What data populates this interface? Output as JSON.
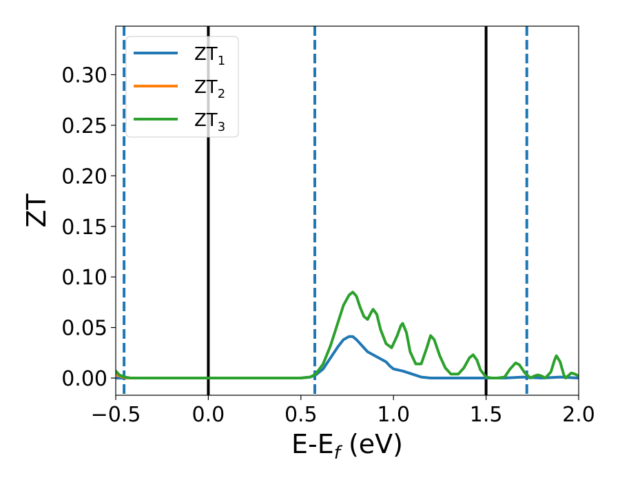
{
  "chart_data": {
    "type": "line",
    "xlabel": "E-E",
    "xlabel_sub": "f",
    "xlabel_unit": " (eV)",
    "ylabel": "ZT",
    "xlim": [
      -0.5,
      2.0
    ],
    "ylim": [
      -0.017,
      0.348
    ],
    "xticks": [
      -0.5,
      0.0,
      0.5,
      1.0,
      1.5,
      2.0
    ],
    "xtick_labels": [
      "−0.5",
      "0.0",
      "0.5",
      "1.0",
      "1.5",
      "2.0"
    ],
    "yticks": [
      0.0,
      0.05,
      0.1,
      0.15,
      0.2,
      0.25,
      0.3
    ],
    "ytick_labels": [
      "0.00",
      "0.05",
      "0.10",
      "0.15",
      "0.20",
      "0.25",
      "0.30"
    ],
    "grid": false,
    "legend_position": "top-left",
    "vlines_solid": [
      0.0,
      1.5
    ],
    "vlines_dashed": [
      -0.455,
      0.575,
      1.72
    ],
    "series": [
      {
        "name": "ZT",
        "sub": "1",
        "color": "#1f77b4",
        "points": [
          [
            -0.5,
            0.0
          ],
          [
            -0.4,
            0.0
          ],
          [
            -0.2,
            0.0
          ],
          [
            0.0,
            0.0
          ],
          [
            0.2,
            0.0
          ],
          [
            0.4,
            0.0
          ],
          [
            0.5,
            0.0
          ],
          [
            0.55,
            0.001
          ],
          [
            0.58,
            0.003
          ],
          [
            0.62,
            0.009
          ],
          [
            0.66,
            0.02
          ],
          [
            0.7,
            0.031
          ],
          [
            0.73,
            0.038
          ],
          [
            0.76,
            0.041
          ],
          [
            0.78,
            0.041
          ],
          [
            0.8,
            0.038
          ],
          [
            0.83,
            0.032
          ],
          [
            0.86,
            0.026
          ],
          [
            0.9,
            0.022
          ],
          [
            0.93,
            0.019
          ],
          [
            0.96,
            0.016
          ],
          [
            0.98,
            0.012
          ],
          [
            1.0,
            0.009
          ],
          [
            1.05,
            0.007
          ],
          [
            1.1,
            0.004
          ],
          [
            1.15,
            0.001
          ],
          [
            1.2,
            0.0
          ],
          [
            1.3,
            0.0
          ],
          [
            1.4,
            0.0
          ],
          [
            1.5,
            0.0
          ],
          [
            1.6,
            0.0
          ],
          [
            1.7,
            0.001
          ],
          [
            1.8,
            0.0
          ],
          [
            1.9,
            0.001
          ],
          [
            2.0,
            0.0
          ]
        ]
      },
      {
        "name": "ZT",
        "sub": "2",
        "color": "#ff7f0e",
        "points": [
          [
            -0.5,
            0.004
          ],
          [
            -0.48,
            0.002
          ],
          [
            -0.46,
            0.001
          ],
          [
            -0.44,
            0.0
          ],
          [
            -0.4,
            0.0
          ]
        ]
      },
      {
        "name": "ZT",
        "sub": "3",
        "color": "#2ca02c",
        "points": [
          [
            -0.5,
            0.007
          ],
          [
            -0.48,
            0.003
          ],
          [
            -0.45,
            0.001
          ],
          [
            -0.42,
            0.0
          ],
          [
            -0.2,
            0.0
          ],
          [
            0.0,
            0.0
          ],
          [
            0.2,
            0.0
          ],
          [
            0.4,
            0.0
          ],
          [
            0.5,
            0.0
          ],
          [
            0.55,
            0.001
          ],
          [
            0.58,
            0.004
          ],
          [
            0.62,
            0.014
          ],
          [
            0.66,
            0.032
          ],
          [
            0.7,
            0.055
          ],
          [
            0.73,
            0.072
          ],
          [
            0.76,
            0.082
          ],
          [
            0.78,
            0.085
          ],
          [
            0.8,
            0.081
          ],
          [
            0.82,
            0.07
          ],
          [
            0.84,
            0.061
          ],
          [
            0.86,
            0.058
          ],
          [
            0.88,
            0.065
          ],
          [
            0.89,
            0.068
          ],
          [
            0.91,
            0.063
          ],
          [
            0.93,
            0.048
          ],
          [
            0.96,
            0.034
          ],
          [
            0.99,
            0.03
          ],
          [
            1.02,
            0.042
          ],
          [
            1.04,
            0.052
          ],
          [
            1.05,
            0.054
          ],
          [
            1.07,
            0.045
          ],
          [
            1.09,
            0.026
          ],
          [
            1.12,
            0.014
          ],
          [
            1.15,
            0.014
          ],
          [
            1.18,
            0.03
          ],
          [
            1.2,
            0.042
          ],
          [
            1.22,
            0.038
          ],
          [
            1.25,
            0.022
          ],
          [
            1.28,
            0.01
          ],
          [
            1.31,
            0.004
          ],
          [
            1.35,
            0.004
          ],
          [
            1.38,
            0.01
          ],
          [
            1.41,
            0.02
          ],
          [
            1.43,
            0.023
          ],
          [
            1.45,
            0.018
          ],
          [
            1.47,
            0.008
          ],
          [
            1.5,
            0.001
          ],
          [
            1.53,
            0.0
          ],
          [
            1.56,
            0.0
          ],
          [
            1.6,
            0.001
          ],
          [
            1.63,
            0.009
          ],
          [
            1.66,
            0.015
          ],
          [
            1.68,
            0.013
          ],
          [
            1.71,
            0.005
          ],
          [
            1.74,
            0.0
          ],
          [
            1.76,
            0.002
          ],
          [
            1.78,
            0.003
          ],
          [
            1.8,
            0.002
          ],
          [
            1.82,
            0.0
          ],
          [
            1.85,
            0.006
          ],
          [
            1.87,
            0.018
          ],
          [
            1.88,
            0.022
          ],
          [
            1.9,
            0.016
          ],
          [
            1.92,
            0.003
          ],
          [
            1.93,
            0.0
          ],
          [
            1.96,
            0.005
          ],
          [
            1.98,
            0.004
          ],
          [
            2.0,
            0.002
          ]
        ]
      }
    ]
  }
}
